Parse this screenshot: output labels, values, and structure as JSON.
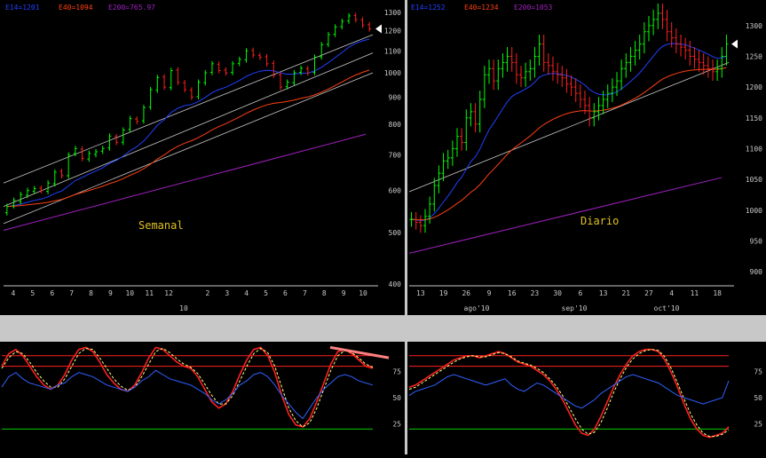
{
  "colors": {
    "up": "#00ff00",
    "down": "#ff2020",
    "e14": "#2040ff",
    "e40": "#ff4010",
    "e200": "#a020c0",
    "channel": "#c8c8c8",
    "stochK": "#ff2020",
    "stochD": "#ffff80",
    "rsi": "#3060ff",
    "level_hi": "#ff2020",
    "level_lo": "#00cc00",
    "divergence": "#ff8080",
    "label": "#e0c020",
    "axis": "#c8c8c8",
    "separator": "#c8c8c8"
  },
  "weekly": {
    "legend": {
      "e14": "E14=1201",
      "e40": "E40=1094",
      "e200": "E200=765.97"
    },
    "label": "Semanal",
    "price_ticks": [
      "1300",
      "1200",
      "1100",
      "1000",
      "900",
      "800",
      "700",
      "600",
      "500",
      "400"
    ],
    "month_ticks": [
      "4",
      "5",
      "6",
      "7",
      "8",
      "9",
      "10",
      "11",
      "12",
      "",
      "2",
      "3",
      "4",
      "5",
      "6",
      "7",
      "8",
      "9",
      "10"
    ],
    "year_label": "10",
    "osc_ticks": [
      "75",
      "50",
      "25"
    ]
  },
  "daily": {
    "legend": {
      "e14": "E14=1252",
      "e40": "E40=1234",
      "e200": "E200=1053"
    },
    "label": "Diario",
    "price_ticks": [
      "1300",
      "1250",
      "1200",
      "1150",
      "1100",
      "1050",
      "1000",
      "950",
      "900"
    ],
    "day_ticks": [
      "13",
      "19",
      "26",
      "9",
      "16",
      "23",
      "30",
      "6",
      "13",
      "21",
      "27",
      "4",
      "11",
      "18"
    ],
    "month_labels": [
      "ago'10",
      "sep'10",
      "oct'10"
    ],
    "osc_ticks": [
      "75",
      "50",
      "25"
    ]
  },
  "chart_data": [
    {
      "type": "candlestick",
      "name": "Semanal",
      "y_scale": "log",
      "ylim": [
        400,
        1330
      ],
      "series": [
        {
          "name": "E14",
          "last": 1201
        },
        {
          "name": "E40",
          "last": 1094
        },
        {
          "name": "E200",
          "last": 765.97
        }
      ],
      "close": [
        560,
        575,
        590,
        600,
        605,
        600,
        620,
        650,
        640,
        700,
        720,
        690,
        705,
        710,
        720,
        760,
        740,
        780,
        820,
        810,
        860,
        930,
        980,
        940,
        1010,
        960,
        930,
        900,
        960,
        1000,
        1040,
        1010,
        1000,
        1040,
        1060,
        1100,
        1080,
        1070,
        1040,
        990,
        940,
        960,
        1000,
        1020,
        1000,
        1070,
        1130,
        1180,
        1220,
        1250,
        1280,
        1260,
        1230,
        1210
      ],
      "open": [
        545,
        562,
        572,
        588,
        598,
        606,
        598,
        618,
        652,
        640,
        705,
        718,
        688,
        702,
        712,
        722,
        758,
        740,
        782,
        818,
        812,
        862,
        928,
        982,
        938,
        1012,
        958,
        928,
        902,
        958,
        1002,
        1038,
        1012,
        1002,
        1042,
        1058,
        1102,
        1078,
        1072,
        1042,
        992,
        942,
        958,
        1002,
        1018,
        1002,
        1072,
        1132,
        1182,
        1222,
        1252,
        1282,
        1258,
        1232
      ]
    },
    {
      "type": "candlestick",
      "name": "Diario",
      "ylim": [
        880,
        1330
      ],
      "series": [
        {
          "name": "E14",
          "last": 1252
        },
        {
          "name": "E40",
          "last": 1234
        },
        {
          "name": "E200",
          "last": 1053
        }
      ],
      "close": [
        985,
        980,
        975,
        990,
        1010,
        1040,
        1060,
        1080,
        1085,
        1100,
        1120,
        1110,
        1150,
        1160,
        1140,
        1180,
        1220,
        1230,
        1210,
        1230,
        1240,
        1250,
        1240,
        1220,
        1215,
        1225,
        1230,
        1250,
        1270,
        1240,
        1235,
        1225,
        1220,
        1215,
        1205,
        1200,
        1190,
        1180,
        1170,
        1150,
        1160,
        1170,
        1180,
        1190,
        1200,
        1210,
        1230,
        1240,
        1250,
        1260,
        1270,
        1290,
        1300,
        1310,
        1320,
        1310,
        1290,
        1280,
        1270,
        1265,
        1260,
        1250,
        1245,
        1240,
        1235,
        1230,
        1225,
        1230,
        1250,
        1270
      ]
    },
    {
      "type": "line",
      "name": "Semanal oscilador",
      "ylim": [
        0,
        100
      ],
      "series": [
        {
          "name": "K",
          "values": [
            80,
            92,
            96,
            90,
            80,
            70,
            62,
            58,
            62,
            72,
            86,
            96,
            98,
            94,
            84,
            72,
            64,
            58,
            56,
            62,
            74,
            88,
            98,
            96,
            90,
            84,
            80,
            78,
            70,
            58,
            46,
            40,
            44,
            56,
            72,
            86,
            96,
            98,
            90,
            74,
            52,
            34,
            24,
            22,
            30,
            46,
            64,
            82,
            94,
            96,
            92,
            86,
            80,
            78
          ]
        },
        {
          "name": "D",
          "values": [
            78,
            88,
            94,
            92,
            84,
            74,
            66,
            60,
            60,
            68,
            80,
            92,
            97,
            96,
            88,
            78,
            68,
            61,
            57,
            60,
            70,
            82,
            94,
            97,
            93,
            87,
            82,
            79,
            73,
            63,
            52,
            44,
            44,
            52,
            66,
            80,
            92,
            97,
            93,
            80,
            60,
            40,
            28,
            22,
            26,
            40,
            58,
            76,
            90,
            95,
            93,
            88,
            82,
            79
          ]
        },
        {
          "name": "RSI",
          "values": [
            60,
            70,
            74,
            68,
            64,
            62,
            60,
            58,
            62,
            64,
            70,
            74,
            72,
            70,
            66,
            62,
            60,
            58,
            56,
            60,
            66,
            70,
            76,
            72,
            68,
            66,
            64,
            62,
            58,
            54,
            48,
            44,
            48,
            54,
            62,
            66,
            72,
            74,
            70,
            62,
            52,
            44,
            36,
            30,
            40,
            50,
            58,
            64,
            70,
            72,
            70,
            66,
            64,
            62
          ]
        }
      ],
      "levels": [
        90,
        80,
        20
      ]
    },
    {
      "type": "line",
      "name": "Diario oscilador",
      "ylim": [
        0,
        100
      ],
      "series": [
        {
          "name": "K",
          "values": [
            60,
            62,
            66,
            70,
            74,
            78,
            82,
            86,
            88,
            90,
            90,
            88,
            90,
            92,
            94,
            92,
            88,
            84,
            82,
            80,
            76,
            72,
            66,
            58,
            48,
            36,
            24,
            16,
            14,
            20,
            32,
            46,
            60,
            72,
            82,
            90,
            94,
            96,
            96,
            94,
            86,
            74,
            60,
            44,
            30,
            20,
            14,
            12,
            14,
            16,
            22
          ]
        },
        {
          "name": "D",
          "values": [
            58,
            60,
            64,
            68,
            72,
            76,
            80,
            84,
            87,
            89,
            90,
            89,
            89,
            91,
            93,
            92,
            89,
            85,
            83,
            81,
            78,
            74,
            68,
            61,
            52,
            41,
            30,
            20,
            15,
            17,
            26,
            40,
            55,
            68,
            79,
            87,
            92,
            95,
            96,
            95,
            89,
            78,
            64,
            49,
            35,
            24,
            16,
            13,
            13,
            15,
            19
          ]
        },
        {
          "name": "RSI",
          "values": [
            52,
            56,
            58,
            60,
            62,
            66,
            70,
            72,
            70,
            68,
            66,
            64,
            62,
            64,
            66,
            68,
            62,
            58,
            56,
            60,
            64,
            62,
            58,
            54,
            50,
            46,
            42,
            40,
            44,
            48,
            54,
            58,
            62,
            66,
            70,
            72,
            70,
            68,
            66,
            64,
            60,
            56,
            52,
            50,
            48,
            46,
            44,
            46,
            48,
            50,
            66
          ]
        }
      ],
      "levels": [
        90,
        80,
        20
      ]
    }
  ]
}
